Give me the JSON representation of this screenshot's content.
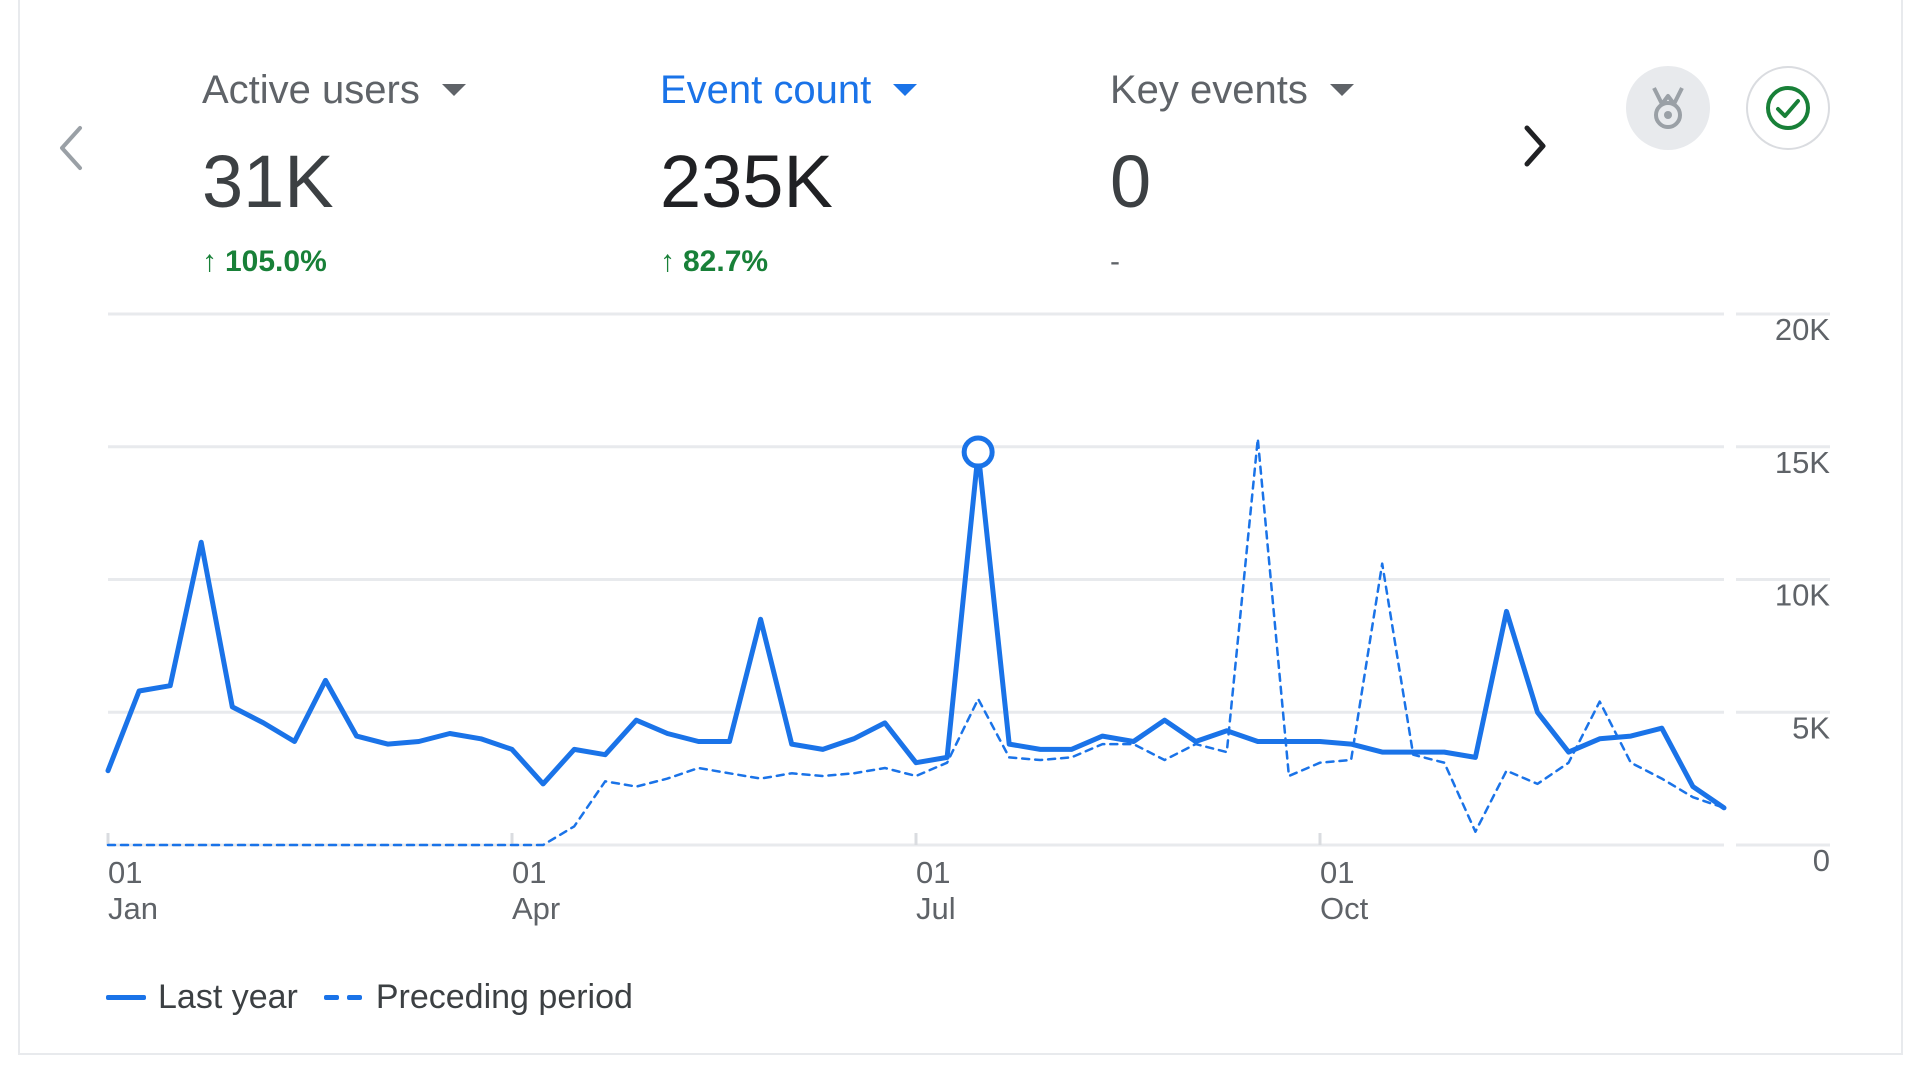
{
  "metrics": [
    {
      "label": "Active users",
      "value": "31K",
      "change": "105.0%",
      "direction": "up",
      "active": false
    },
    {
      "label": "Event count",
      "value": "235K",
      "change": "82.7%",
      "direction": "up",
      "active": true
    },
    {
      "label": "Key events",
      "value": "0",
      "change": "-",
      "direction": "none",
      "active": false
    }
  ],
  "icons": {
    "prev": "chevron-left-icon",
    "next": "chevron-right-icon",
    "medal": "medal-icon",
    "check": "check-circle-icon"
  },
  "colors": {
    "accent": "#1a73e8",
    "positive": "#188038",
    "muted": "#5f6368",
    "grid": "#e8eaed"
  },
  "legend": {
    "last_year": "Last year",
    "preceding": "Preceding period"
  },
  "chart_data": {
    "type": "line",
    "x_ticks": [
      {
        "day": "01",
        "month": "Jan",
        "index": 0
      },
      {
        "day": "01",
        "month": "Apr",
        "index": 13
      },
      {
        "day": "01",
        "month": "Jul",
        "index": 26
      },
      {
        "day": "01",
        "month": "Oct",
        "index": 39
      }
    ],
    "y_ticks": [
      "0",
      "5K",
      "10K",
      "15K",
      "20K"
    ],
    "ylim": [
      0,
      20000
    ],
    "grid": true,
    "legend_position": "bottom-left",
    "highlighted_point": {
      "series": "Last year",
      "index": 28
    },
    "series": [
      {
        "name": "Last year",
        "style": "solid",
        "values": [
          2800,
          5800,
          6000,
          11400,
          5200,
          4600,
          3900,
          6200,
          4100,
          3800,
          3900,
          4200,
          4000,
          3600,
          2300,
          3600,
          3400,
          4700,
          4200,
          3900,
          3900,
          8500,
          3800,
          3600,
          4000,
          4600,
          3100,
          3300,
          14800,
          3800,
          3600,
          3600,
          4100,
          3900,
          4700,
          3900,
          4300,
          3900,
          3900,
          3900,
          3800,
          3500,
          3500,
          3500,
          3300,
          8800,
          5000,
          3500,
          4000,
          4100,
          4400,
          2200,
          1400
        ]
      },
      {
        "name": "Preceding period",
        "style": "dashed",
        "values": [
          0,
          0,
          0,
          0,
          0,
          0,
          0,
          0,
          0,
          0,
          0,
          0,
          0,
          0,
          0,
          700,
          2400,
          2200,
          2500,
          2900,
          2700,
          2500,
          2700,
          2600,
          2700,
          2900,
          2600,
          3100,
          5500,
          3300,
          3200,
          3300,
          3800,
          3800,
          3200,
          3800,
          3500,
          15300,
          2600,
          3100,
          3200,
          10600,
          3400,
          3100,
          500,
          2800,
          2300,
          3100,
          5400,
          3100,
          2500,
          1800,
          1400
        ]
      }
    ]
  }
}
